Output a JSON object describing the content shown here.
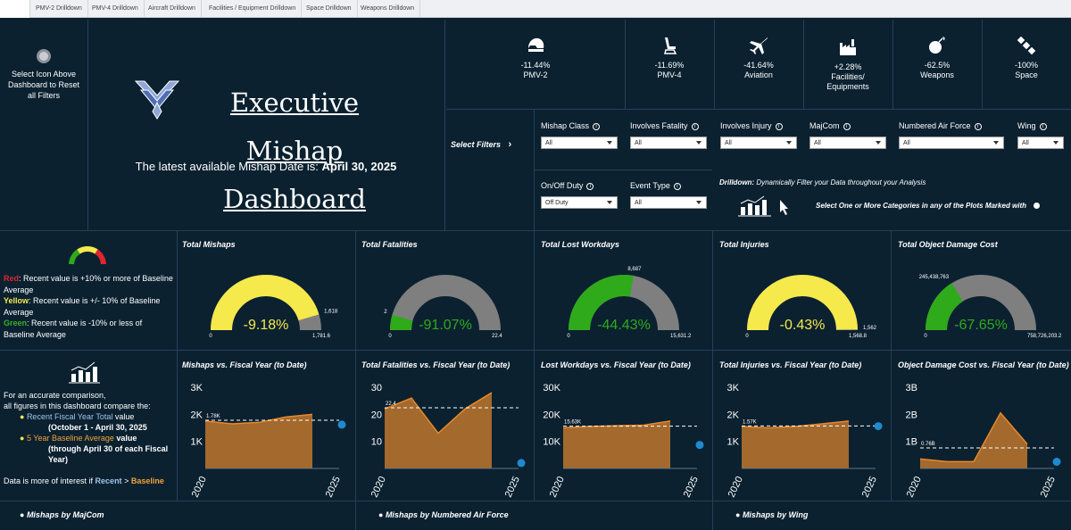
{
  "tabs": [
    "",
    "PMV-2 Drilldown",
    "PMV-4 Drilldown",
    "Aircraft Drilldown",
    "Facilities / Equipment Drilldown",
    "Space Drilldown",
    "Weapons Drilldown"
  ],
  "reset": {
    "text": "Select Icon Above Dashboard to Reset all Filters"
  },
  "header": {
    "title_line1": "Executive Mishap",
    "title_line2": "Dashboard",
    "latest_prefix": "The latest available Mishap Date is: ",
    "latest_date": "April 30, 2025"
  },
  "kpis": [
    {
      "value": "-11.44%",
      "label": "PMV-2",
      "icon": "motorcycle-helmet-icon"
    },
    {
      "value": "-11.69%",
      "label": "PMV-4",
      "icon": "car-seat-icon"
    },
    {
      "value": "-41.64%",
      "label": "Aviation",
      "icon": "airplane-icon"
    },
    {
      "value": "+2.28%",
      "label": "Facilities/ Equipments",
      "icon": "factory-icon"
    },
    {
      "value": "-62.5%",
      "label": "Weapons",
      "icon": "bomb-icon"
    },
    {
      "value": "-100%",
      "label": "Space",
      "icon": "satellite-icon"
    }
  ],
  "filters": {
    "select_label": "Select Filters",
    "items": [
      {
        "label": "Mishap Class",
        "value": "All"
      },
      {
        "label": "Involves Fatality",
        "value": "All"
      },
      {
        "label": "Involves Injury",
        "value": "All"
      },
      {
        "label": "MajCom",
        "value": "All"
      },
      {
        "label": "Numbered Air Force",
        "value": "All"
      },
      {
        "label": "Wing",
        "value": "All"
      },
      {
        "label": "On/Off Duty",
        "value": "Off Duty"
      },
      {
        "label": "Event Type",
        "value": "All"
      }
    ],
    "drilldown_bold": "Drilldown:",
    "drilldown_text": " Dynamically Filter your Data throughout your Analysis",
    "select_categories": "Select One or More Categories in any of the Plots Marked with"
  },
  "legend": {
    "red_word": "Red",
    "red_text": ": Recent value is +10% or more of Baseline Average",
    "yellow_word": "Yellow",
    "yellow_text": ": Recent value is +/- 10% of Baseline Average",
    "green_word": "Green",
    "green_text": ": Recent value is -10% or less of Baseline Average"
  },
  "note": {
    "line1": "For an accurate comparison,",
    "line2": "all figures in this dashboard compare the:",
    "b1": "Recent Fiscal Year Total",
    "b1_suffix": " value",
    "b1_sub": "(October 1 - April 30, 2025",
    "b2": "5 Year Baseline Average",
    "b2_suffix": " value",
    "b2_sub": "(through April 30 of each Fiscal Year)",
    "interest_prefix": "Data is more of interest if ",
    "recent": "Recent",
    "gt": " > ",
    "baseline": "Baseline"
  },
  "colors": {
    "yellow": "#f5e94c",
    "green": "#2faa1a",
    "gray": "#7f7f7f",
    "orange": "#c0762c",
    "dot": "#1f8ad0"
  },
  "chart_data": [
    {
      "type": "gauge",
      "title": "Total Mishaps",
      "value": 1618,
      "max": 1781.6,
      "min": 0,
      "pct": "-9.18%",
      "fill_fraction": 0.908,
      "color": "yellow",
      "value_label": "1,618",
      "min_label": "0",
      "max_label": "1,781.6"
    },
    {
      "type": "gauge",
      "title": "Total Fatalities",
      "value": 2,
      "max": 22.4,
      "min": 0,
      "pct": "-91.07%",
      "fill_fraction": 0.089,
      "color": "green",
      "value_label": "2",
      "min_label": "0",
      "max_label": "22.4"
    },
    {
      "type": "gauge",
      "title": "Total Lost Workdays",
      "value": 8687,
      "max": 15631.2,
      "min": 0,
      "pct": "-44.43%",
      "fill_fraction": 0.556,
      "color": "green",
      "value_label": "8,687",
      "min_label": "0",
      "max_label": "15,631.2"
    },
    {
      "type": "gauge",
      "title": "Total Injuries",
      "value": 1562,
      "max": 1568.8,
      "min": 0,
      "pct": "-0.43%",
      "fill_fraction": 0.996,
      "color": "yellow",
      "value_label": "1,562",
      "min_label": "0",
      "max_label": "1,568.8"
    },
    {
      "type": "gauge",
      "title": "Total Object Damage Cost",
      "value": 245438763,
      "max": 758726203.2,
      "min": 0,
      "pct": "-67.65%",
      "fill_fraction": 0.323,
      "color": "green",
      "value_label": "245,438,763",
      "min_label": "0",
      "max_label": "758,726,203.2"
    },
    {
      "type": "area",
      "title": "Mishaps vs. Fiscal Year (to Date)",
      "x": [
        2020,
        2021,
        2022,
        2023,
        2024
      ],
      "values": [
        1750,
        1650,
        1700,
        1900,
        2000
      ],
      "baseline": 1781.6,
      "baseline_label": "1.78K",
      "recent": 1618,
      "ylim": [
        0,
        3000
      ],
      "yticks": [
        "3K",
        "2K",
        "1K"
      ],
      "xticks": [
        "2020",
        "2025"
      ]
    },
    {
      "type": "area",
      "title": "Total Fatalities vs. Fiscal Year (to Date)",
      "x": [
        2020,
        2021,
        2022,
        2023,
        2024
      ],
      "values": [
        22,
        26,
        13,
        22,
        28
      ],
      "baseline": 22.4,
      "baseline_label": "22.4",
      "recent": 2,
      "ylim": [
        0,
        30
      ],
      "yticks": [
        "30",
        "20",
        "10"
      ],
      "xticks": [
        "2020",
        "2025"
      ]
    },
    {
      "type": "area",
      "title": "Lost Workdays vs. Fiscal Year (to Date)",
      "x": [
        2020,
        2021,
        2022,
        2023,
        2024
      ],
      "values": [
        15000,
        15500,
        15800,
        16000,
        17500
      ],
      "baseline": 15631.2,
      "baseline_label": "15.63K",
      "recent": 8687,
      "ylim": [
        0,
        30000
      ],
      "yticks": [
        "30K",
        "20K",
        "10K"
      ],
      "xticks": [
        "2020",
        "2025"
      ]
    },
    {
      "type": "area",
      "title": "Total Injuries vs. Fiscal Year (to Date)",
      "x": [
        2020,
        2021,
        2022,
        2023,
        2024
      ],
      "values": [
        1550,
        1500,
        1550,
        1650,
        1750
      ],
      "baseline": 1568.8,
      "baseline_label": "1.57K",
      "recent": 1562,
      "ylim": [
        0,
        3000
      ],
      "yticks": [
        "3K",
        "2K",
        "1K"
      ],
      "xticks": [
        "2020",
        "2025"
      ]
    },
    {
      "type": "area",
      "title": "Object Damage Cost vs. Fiscal Year (to Date)",
      "x": [
        2020,
        2021,
        2022,
        2023,
        2024
      ],
      "values": [
        350000000,
        250000000,
        250000000,
        2050000000,
        900000000
      ],
      "baseline": 758726203.2,
      "baseline_label": "0.76B",
      "recent": 245438763,
      "ylim": [
        0,
        3000000000
      ],
      "yticks": [
        "3B",
        "2B",
        "1B"
      ],
      "xticks": [
        "2020",
        "2025"
      ]
    }
  ],
  "bottom": [
    "Mishaps by MajCom",
    "Mishaps by Numbered Air Force",
    "Mishaps by Wing"
  ]
}
